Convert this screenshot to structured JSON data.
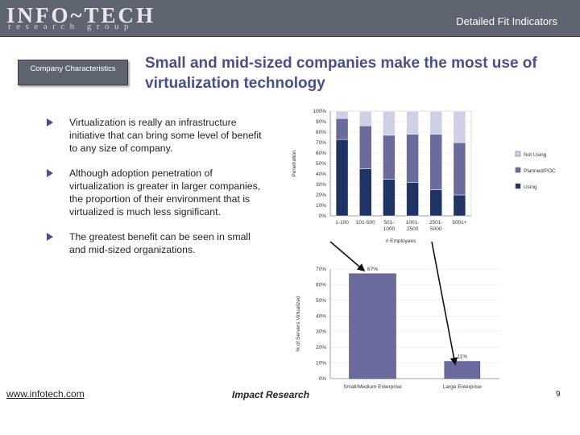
{
  "header": {
    "logo_main": "INFO~TECH",
    "logo_sub": "research group",
    "slide_tag": "Detailed Fit Indicators"
  },
  "sidebar": {
    "company_label": "Company Characteristics"
  },
  "title": "Small and mid-sized companies make the most use of virtualization technology",
  "bullets": [
    "Virtualization is really an infrastructure initiative that can bring some level of benefit to any size of company.",
    "Although adoption penetration of virtualization is greater in larger companies, the proportion of their environment that is virtualized is much less significant.",
    "The greatest benefit can be seen in small and mid-sized organizations."
  ],
  "footer": {
    "url": "www.infotech.com",
    "center": "Impact Research",
    "page": "9"
  },
  "colors": {
    "using": "#1f3464",
    "planned": "#6a6a9c",
    "not_using": "#cfcfe6",
    "bar2": "#6a6a9c",
    "header_bg": "#5f6471"
  },
  "chart_data": [
    {
      "type": "bar",
      "stacked": true,
      "categories": [
        "1-100",
        "101-500",
        "501-1000",
        "1001-2500",
        "2501-5000",
        "5001+"
      ],
      "category_labels": [
        [
          "1-100"
        ],
        [
          "101-500"
        ],
        [
          "501-",
          "1000"
        ],
        [
          "1001-",
          "2500"
        ],
        [
          "2501-",
          "5000"
        ],
        [
          "5001+"
        ]
      ],
      "series": [
        {
          "name": "Using",
          "values": [
            73,
            45,
            35,
            32,
            25,
            20
          ]
        },
        {
          "name": "Planned/POC",
          "values": [
            20,
            41,
            42,
            46,
            53,
            50
          ]
        },
        {
          "name": "Not Using",
          "values": [
            7,
            14,
            23,
            22,
            22,
            30
          ]
        }
      ],
      "legend_order": [
        "Not Using",
        "Planned/POC",
        "Using"
      ],
      "ylabel": "Penetration",
      "xlabel": "# Employees",
      "ylim": [
        0,
        100
      ],
      "yticks": [
        "0%",
        "10%",
        "20%",
        "30%",
        "40%",
        "50%",
        "60%",
        "70%",
        "80%",
        "90%",
        "100%"
      ],
      "legend_position": "right"
    },
    {
      "type": "bar",
      "categories": [
        "Small/Medium Enterprise",
        "Large Enterprise"
      ],
      "values": [
        67,
        11
      ],
      "value_labels": [
        "67%",
        "11%"
      ],
      "ylabel": "% of Servers Virtualized",
      "ylim": [
        0,
        70
      ],
      "yticks": [
        "0%",
        "10%",
        "20%",
        "30%",
        "40%",
        "50%",
        "60%",
        "70%"
      ]
    }
  ]
}
